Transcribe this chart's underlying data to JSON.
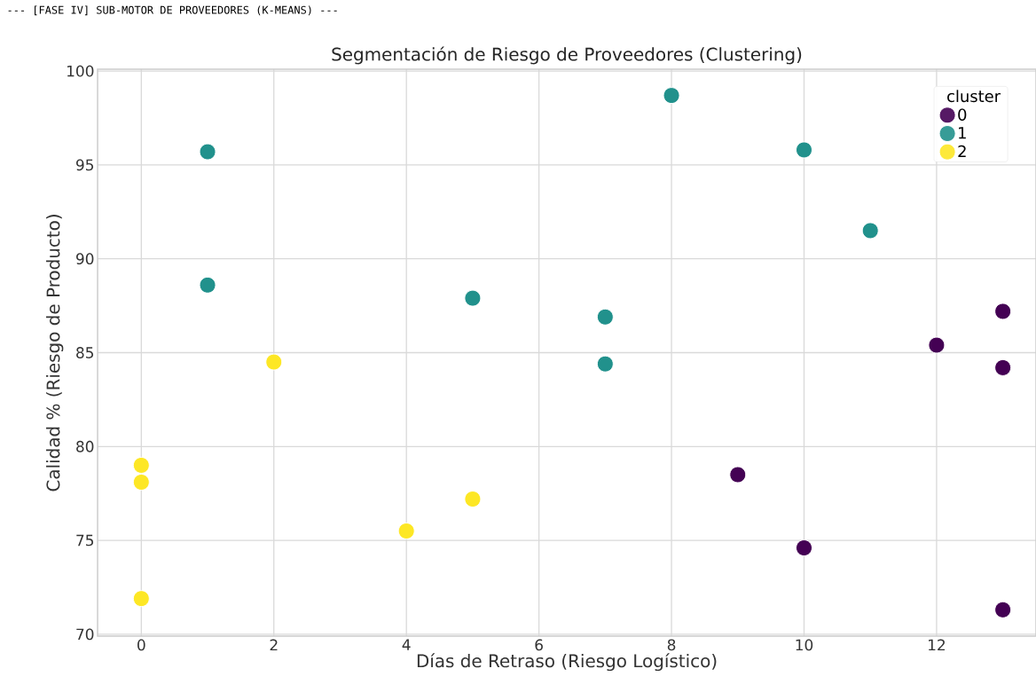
{
  "chart_data": {
    "type": "scatter",
    "title": "Segmentación de Riesgo de Proveedores (Clustering)",
    "xlabel": "Días de Retraso (Riesgo Logístico)",
    "ylabel": "Calidad % (Riesgo de Producto)",
    "legend_title": "cluster",
    "annotations": [
      "--- [FASE IV] SUB-MOTOR DE PROVEEDORES (K-MEANS) ---"
    ],
    "xlim": [
      -0.66,
      13.5
    ],
    "ylim": [
      69.9,
      100.1
    ],
    "xticks": [
      0,
      2,
      4,
      6,
      8,
      10,
      12
    ],
    "yticks": [
      70,
      75,
      80,
      85,
      90,
      95,
      100
    ],
    "grid": true,
    "legend": "top right",
    "marker": "circle",
    "series": [
      {
        "name": "0",
        "color": "#440154",
        "x": [
          13,
          12,
          13,
          9,
          10,
          13
        ],
        "values": [
          87.2,
          85.4,
          84.2,
          78.5,
          74.6,
          71.3
        ]
      },
      {
        "name": "1",
        "color": "#21918c",
        "x": [
          1,
          1,
          5,
          7,
          7,
          8,
          10,
          11
        ],
        "values": [
          95.7,
          88.6,
          87.9,
          86.9,
          84.4,
          98.7,
          95.8,
          91.5
        ]
      },
      {
        "name": "2",
        "color": "#fde725",
        "x": [
          2,
          0,
          0,
          0,
          4,
          5
        ],
        "values": [
          84.5,
          79.0,
          78.1,
          71.9,
          75.5,
          77.2
        ]
      }
    ]
  }
}
